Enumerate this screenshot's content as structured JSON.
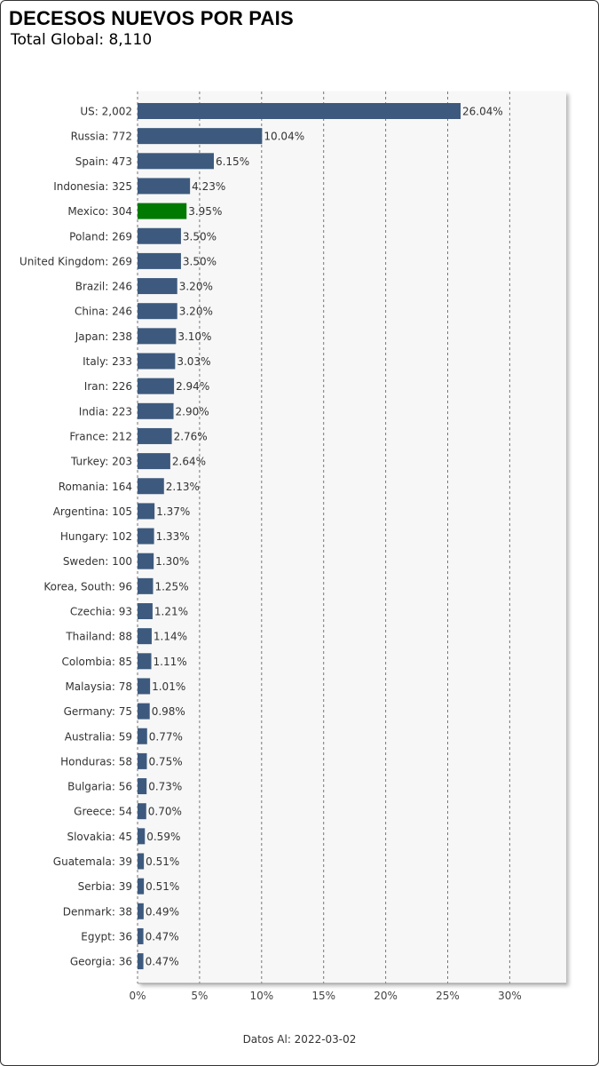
{
  "title": "DECESOS NUEVOS POR PAIS",
  "subtitle": "Total Global: 8,110",
  "footer": "Datos Al: 2022-03-02",
  "colors": {
    "bar": "#3d5a7e",
    "highlight": "#007a00",
    "plot_bg": "#f7f7f7",
    "grid": "#777777"
  },
  "chart_data": {
    "type": "bar",
    "orientation": "horizontal",
    "categories": [
      "US",
      "Russia",
      "Spain",
      "Indonesia",
      "Mexico",
      "Poland",
      "United Kingdom",
      "Brazil",
      "China",
      "Japan",
      "Italy",
      "Iran",
      "India",
      "France",
      "Turkey",
      "Romania",
      "Argentina",
      "Hungary",
      "Sweden",
      "Korea, South",
      "Czechia",
      "Thailand",
      "Colombia",
      "Malaysia",
      "Germany",
      "Australia",
      "Honduras",
      "Bulgaria",
      "Greece",
      "Slovakia",
      "Guatemala",
      "Serbia",
      "Denmark",
      "Egypt",
      "Georgia"
    ],
    "count_labels": [
      "2,002",
      "772",
      "473",
      "325",
      "304",
      "269",
      "269",
      "246",
      "246",
      "238",
      "233",
      "226",
      "223",
      "212",
      "203",
      "164",
      "105",
      "102",
      "100",
      "96",
      "93",
      "88",
      "85",
      "78",
      "75",
      "59",
      "58",
      "56",
      "54",
      "45",
      "39",
      "39",
      "38",
      "36",
      "36"
    ],
    "values": [
      26.04,
      10.04,
      6.15,
      4.23,
      3.95,
      3.5,
      3.5,
      3.2,
      3.2,
      3.1,
      3.03,
      2.94,
      2.9,
      2.76,
      2.64,
      2.13,
      1.37,
      1.33,
      1.3,
      1.25,
      1.21,
      1.14,
      1.11,
      1.01,
      0.98,
      0.77,
      0.75,
      0.73,
      0.7,
      0.59,
      0.51,
      0.51,
      0.49,
      0.47,
      0.47
    ],
    "value_labels": [
      "26.04%",
      "10.04%",
      "6.15%",
      "4.23%",
      "3.95%",
      "3.50%",
      "3.50%",
      "3.20%",
      "3.20%",
      "3.10%",
      "3.03%",
      "2.94%",
      "2.90%",
      "2.76%",
      "2.64%",
      "2.13%",
      "1.37%",
      "1.33%",
      "1.30%",
      "1.25%",
      "1.21%",
      "1.14%",
      "1.11%",
      "1.01%",
      "0.98%",
      "0.77%",
      "0.75%",
      "0.73%",
      "0.70%",
      "0.59%",
      "0.51%",
      "0.51%",
      "0.49%",
      "0.47%",
      "0.47%"
    ],
    "highlight": "Mexico",
    "xticks": [
      0,
      5,
      10,
      15,
      20,
      25,
      30
    ],
    "xtick_labels": [
      "0%",
      "5%",
      "10%",
      "15%",
      "20%",
      "25%",
      "30%"
    ],
    "xlim": [
      0,
      34.5
    ],
    "grid": "vertical dashed"
  }
}
